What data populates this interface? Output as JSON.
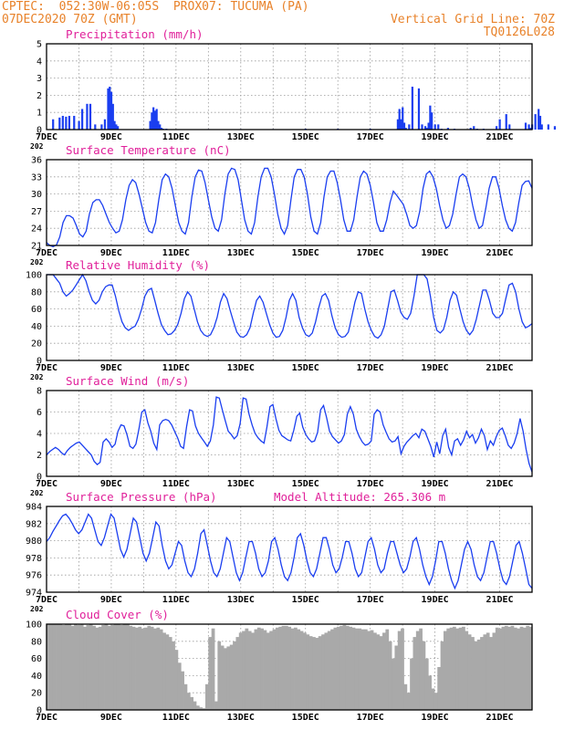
{
  "header": {
    "line1_left": "CPTEC:  052:30W-06:05S  PROX07: TUCUMA (PA)",
    "line2_left": "07DEC2020 70Z (GMT)",
    "line2_right": "Vertical Grid Line: 70Z",
    "line3_right": "TQ0126L028"
  },
  "colors": {
    "header": "#e8822a",
    "title": "#e0209a",
    "series": "#1a3ef0",
    "cloud": "#a9a9a9"
  },
  "x_ticks": [
    "7DEC",
    "9DEC",
    "11DEC",
    "13DEC",
    "15DEC",
    "17DEC",
    "19DEC",
    "21DEC"
  ],
  "year_stub": "202",
  "chart_data": [
    {
      "type": "bar",
      "title": "Precipitation (mm/h)",
      "ylim": [
        0,
        5
      ],
      "yticks": [
        "0",
        "1",
        "2",
        "3",
        "4",
        "5"
      ],
      "x": [
        0.2,
        0.4,
        0.5,
        0.6,
        0.7,
        0.85,
        1.0,
        1.1,
        1.25,
        1.35,
        1.5,
        1.7,
        1.8,
        1.9,
        1.95,
        2.0,
        2.05,
        2.1,
        2.15,
        2.2,
        3.2,
        3.25,
        3.3,
        3.35,
        3.4,
        3.45,
        3.5,
        3.55,
        3.6,
        3.7,
        5.0,
        6.0,
        7.0,
        8.0,
        9.0,
        10.0,
        10.85,
        10.9,
        10.95,
        11.0,
        11.05,
        11.1,
        11.2,
        11.3,
        11.5,
        11.6,
        11.7,
        11.75,
        11.8,
        11.85,
        11.9,
        12.0,
        12.1,
        12.2,
        12.4,
        12.6,
        13.1,
        13.2,
        13.3,
        13.5,
        13.9,
        14.0,
        14.2,
        14.3,
        14.8,
        14.9,
        14.95,
        15.0,
        15.1,
        15.2,
        15.25,
        15.3,
        15.5,
        15.7
      ],
      "values": [
        0.6,
        0.7,
        0.8,
        0.75,
        0.8,
        0.8,
        0.5,
        1.2,
        1.5,
        1.5,
        0.3,
        0.3,
        0.6,
        2.4,
        2.5,
        2.2,
        1.5,
        0.5,
        0.3,
        0.2,
        0.5,
        1.0,
        1.3,
        1.1,
        1.2,
        0.5,
        0.3,
        0.1,
        0.05,
        0.05,
        0.03,
        0.03,
        0.03,
        0.05,
        0.05,
        0.05,
        0.6,
        1.2,
        0.6,
        1.3,
        0.4,
        0.1,
        0.3,
        2.5,
        2.4,
        0.3,
        0.2,
        0.1,
        0.4,
        1.4,
        1.0,
        0.3,
        0.3,
        0.05,
        0.1,
        0.05,
        0.1,
        0.2,
        0.05,
        0.05,
        0.2,
        0.6,
        0.9,
        0.3,
        0.4,
        0.3,
        0.1,
        0.3,
        0.9,
        1.2,
        0.8,
        0.3,
        0.3,
        0.2
      ]
    },
    {
      "type": "line",
      "title": "Surface Temperature (nC)",
      "ylim": [
        21,
        36
      ],
      "yticks": [
        "21",
        "24",
        "27",
        "30",
        "33",
        "36"
      ],
      "values": [
        21.5,
        21,
        20.8,
        21.1,
        22.5,
        25,
        26.2,
        26.2,
        25.8,
        24.5,
        23,
        22.5,
        23.5,
        26.5,
        28.5,
        29,
        29,
        28,
        26.5,
        25,
        24,
        23.2,
        23.5,
        25.5,
        29,
        31.5,
        32.5,
        32,
        30,
        27.5,
        25,
        23.5,
        23.2,
        25,
        29,
        32.5,
        33.5,
        33,
        31,
        28,
        25,
        23.5,
        23,
        25,
        29.5,
        33,
        34.2,
        34,
        32,
        29,
        26,
        24,
        23.5,
        25.5,
        30,
        33.5,
        34.5,
        34.3,
        32.5,
        29,
        25.5,
        23.5,
        23,
        25,
        29.5,
        33,
        34.5,
        34.5,
        33,
        30,
        26.5,
        24,
        23,
        24.5,
        29,
        33,
        34.3,
        34.3,
        33,
        30,
        26,
        23.5,
        23,
        25,
        29.5,
        33,
        34,
        34,
        32,
        29,
        25.5,
        23.5,
        23.5,
        25.5,
        29.5,
        33,
        34,
        33.5,
        31.5,
        28.5,
        25,
        23.5,
        23.5,
        25.5,
        28.5,
        30.5,
        29.8,
        29,
        28.2,
        26.5,
        24.5,
        24,
        24.5,
        27,
        31,
        33.5,
        34,
        33,
        31,
        28,
        25.5,
        24,
        24.5,
        26.5,
        30,
        33,
        33.5,
        33,
        31,
        28,
        25.5,
        24,
        24.5,
        27.5,
        31,
        33,
        33,
        31,
        28,
        25.5,
        24,
        23.5,
        25,
        28.5,
        31.5,
        32.2,
        32.3,
        31
      ]
    },
    {
      "type": "line",
      "title": "Relative Humidity (%)",
      "ylim": [
        0,
        100
      ],
      "yticks": [
        "0",
        "20",
        "40",
        "60",
        "80",
        "100"
      ],
      "values": [
        100,
        100,
        100,
        95,
        90,
        80,
        75,
        78,
        82,
        88,
        94,
        100,
        93,
        80,
        70,
        66,
        70,
        80,
        86,
        88,
        88,
        75,
        58,
        45,
        38,
        35,
        38,
        40,
        48,
        60,
        75,
        82,
        84,
        70,
        55,
        42,
        35,
        30,
        31,
        35,
        42,
        55,
        72,
        80,
        75,
        60,
        45,
        35,
        30,
        28,
        30,
        38,
        50,
        68,
        78,
        72,
        58,
        45,
        33,
        28,
        27,
        30,
        38,
        55,
        70,
        75,
        68,
        55,
        42,
        32,
        27,
        28,
        35,
        50,
        70,
        78,
        70,
        50,
        38,
        30,
        28,
        32,
        45,
        62,
        75,
        78,
        70,
        52,
        38,
        30,
        27,
        28,
        33,
        50,
        68,
        80,
        78,
        60,
        45,
        35,
        28,
        26,
        30,
        40,
        60,
        80,
        82,
        70,
        56,
        50,
        48,
        55,
        75,
        100,
        100,
        100,
        95,
        75,
        50,
        35,
        32,
        36,
        50,
        70,
        80,
        76,
        60,
        45,
        35,
        30,
        35,
        48,
        65,
        82,
        82,
        70,
        55,
        50,
        50,
        55,
        72,
        88,
        90,
        80,
        60,
        45,
        38,
        40,
        43
      ]
    },
    {
      "type": "line",
      "title": "Surface Wind (m/s)",
      "ylim": [
        0,
        8
      ],
      "yticks": [
        "0",
        "2",
        "4",
        "6",
        "8"
      ],
      "values": [
        2,
        2.3,
        2.5,
        2.7,
        2.5,
        2.2,
        2,
        2.4,
        2.7,
        2.9,
        3.1,
        3.2,
        2.9,
        2.6,
        2.3,
        2,
        1.4,
        1.1,
        1.3,
        3.2,
        3.5,
        3.2,
        2.7,
        3,
        4.2,
        4.8,
        4.7,
        3.9,
        2.8,
        2.6,
        3,
        4.4,
        6,
        6.2,
        5,
        4.2,
        3.1,
        2.5,
        4.8,
        5.2,
        5.3,
        5.2,
        4.8,
        4.2,
        3.6,
        2.8,
        2.6,
        4.6,
        6.2,
        6.1,
        4.7,
        4,
        3.6,
        3.2,
        2.8,
        3.3,
        4.8,
        7.4,
        7.3,
        6.2,
        5.2,
        4.2,
        3.9,
        3.5,
        3.8,
        4.9,
        7.3,
        7.2,
        5.8,
        4.8,
        4,
        3.6,
        3.3,
        3.1,
        4.6,
        6.5,
        6.7,
        5.4,
        4.3,
        3.8,
        3.6,
        3.4,
        3.3,
        4.3,
        5.6,
        5.9,
        4.6,
        3.9,
        3.5,
        3.2,
        3.3,
        4.1,
        6.2,
        6.6,
        5.5,
        4.2,
        3.7,
        3.4,
        3.1,
        3.3,
        3.9,
        5.8,
        6.5,
        5.8,
        4.4,
        3.7,
        3.2,
        2.9,
        3,
        3.3,
        5.8,
        6.2,
        6,
        4.8,
        4.1,
        3.5,
        3.2,
        3.3,
        3.7,
        2.1,
        2.8,
        3.2,
        3.5,
        3.8,
        4,
        3.6,
        4.4,
        4.2,
        3.5,
        2.8,
        1.8,
        3.2,
        2.1,
        3.8,
        4.4,
        2.7,
        2,
        3.3,
        3.5,
        2.9,
        3.4,
        4.2,
        3.6,
        3.9,
        3.1,
        3.6,
        4.4,
        3.8,
        2.5,
        3.3,
        2.9,
        3.7,
        4.3,
        4.5,
        3.8,
        2.9,
        2.6,
        3.1,
        4,
        5.4,
        4.2,
        2.5,
        1.2,
        0.4
      ]
    },
    {
      "type": "line",
      "title": "Surface Pressure (hPa)",
      "annotation": "Model Altitude: 265.306 m",
      "ylim": [
        974,
        985
      ],
      "yticks": [
        "974",
        "976",
        "978",
        "980",
        "982",
        "984"
      ],
      "values": [
        980.5,
        981,
        981.8,
        982.5,
        983.2,
        983.8,
        984,
        983.5,
        982.8,
        982,
        981.5,
        982,
        983,
        984,
        983.5,
        982,
        980.5,
        980,
        981,
        982.5,
        984,
        983.5,
        981.5,
        979.5,
        978.5,
        979.5,
        981.5,
        983.5,
        983,
        981,
        979,
        978,
        979,
        981,
        983,
        982.5,
        980,
        978,
        977,
        977.5,
        979,
        980.5,
        980,
        978,
        976.5,
        976,
        977,
        979,
        981.5,
        982,
        980,
        978,
        976.5,
        976,
        977,
        979,
        981,
        980.5,
        978.5,
        976.5,
        975.5,
        976.5,
        978.5,
        980.5,
        980.5,
        979,
        977,
        976,
        976.5,
        978,
        980.5,
        981,
        979.5,
        977.5,
        976,
        975.5,
        976.5,
        978.5,
        981,
        981.5,
        980,
        978,
        976.5,
        976,
        977,
        979,
        981,
        981,
        979.5,
        977.5,
        976.5,
        977,
        978.5,
        980.5,
        980.5,
        979,
        977,
        976,
        976.5,
        978.5,
        980.5,
        981,
        979.5,
        977.5,
        976.5,
        977,
        979,
        980.5,
        980.5,
        979,
        977.5,
        976.5,
        977,
        978.5,
        980.5,
        981,
        979.5,
        977.5,
        976,
        975,
        976,
        978,
        980.5,
        980.5,
        979,
        977,
        975.5,
        974.5,
        975.5,
        977.5,
        979.5,
        980.5,
        979.5,
        977.5,
        976,
        975.5,
        976.5,
        978.5,
        980.5,
        980.5,
        979,
        977,
        975.5,
        975,
        976,
        978,
        980,
        980.5,
        979,
        977,
        975,
        974.5
      ]
    },
    {
      "type": "area",
      "title": "Cloud Cover (%)",
      "ylim": [
        0,
        100
      ],
      "yticks": [
        "0",
        "20",
        "40",
        "60",
        "80",
        "100"
      ],
      "values": [
        100,
        100,
        100,
        100,
        100,
        99,
        100,
        100,
        98,
        100,
        99,
        100,
        97,
        99,
        100,
        98,
        96,
        97,
        99,
        100,
        98,
        99,
        100,
        100,
        99,
        100,
        100,
        98,
        97,
        96,
        97,
        95,
        96,
        98,
        97,
        95,
        96,
        94,
        90,
        88,
        85,
        80,
        70,
        55,
        45,
        30,
        20,
        15,
        10,
        5,
        3,
        2,
        30,
        85,
        95,
        10,
        80,
        75,
        72,
        74,
        76,
        80,
        85,
        90,
        92,
        95,
        92,
        90,
        94,
        96,
        95,
        93,
        90,
        92,
        94,
        96,
        97,
        98,
        98,
        97,
        95,
        96,
        94,
        92,
        90,
        88,
        86,
        85,
        84,
        86,
        88,
        90,
        92,
        94,
        96,
        97,
        98,
        99,
        98,
        97,
        96,
        95,
        95,
        94,
        94,
        92,
        93,
        90,
        88,
        86,
        90,
        94,
        80,
        60,
        75,
        92,
        95,
        30,
        20,
        60,
        85,
        92,
        95,
        80,
        60,
        40,
        25,
        20,
        50,
        80,
        92,
        95,
        96,
        97,
        95,
        96,
        97,
        92,
        88,
        85,
        80,
        82,
        85,
        88,
        90,
        85,
        90,
        96,
        95,
        97,
        98,
        97,
        98,
        96,
        95,
        97,
        96,
        98,
        97
      ]
    }
  ]
}
